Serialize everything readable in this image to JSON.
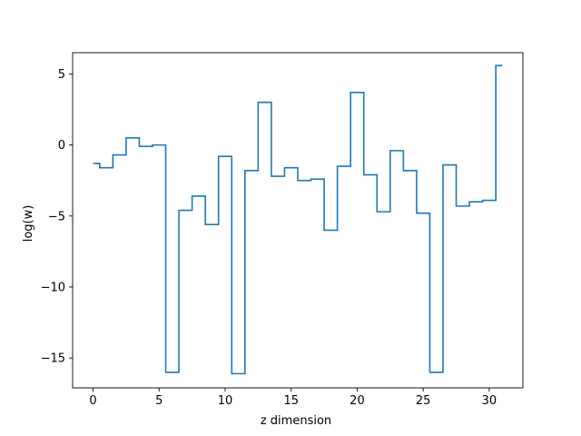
{
  "chart_data": {
    "type": "line",
    "drawstyle": "steps-mid",
    "title": "",
    "xlabel": "z dimension",
    "ylabel": "log(w)",
    "xlim": [
      -1.55,
      32.55
    ],
    "ylim": [
      -17.1,
      6.5
    ],
    "xticks": [
      0,
      5,
      10,
      15,
      20,
      25,
      30
    ],
    "xtick_labels": [
      "0",
      "5",
      "10",
      "15",
      "20",
      "25",
      "30"
    ],
    "yticks": [
      5,
      0,
      -5,
      -10,
      -15
    ],
    "ytick_labels": [
      "5",
      "0",
      "−5",
      "−10",
      "−15"
    ],
    "grid": false,
    "series": [
      {
        "color": "#1f77b4",
        "x": [
          0,
          1,
          2,
          3,
          4,
          5,
          6,
          7,
          8,
          9,
          10,
          11,
          12,
          13,
          14,
          15,
          16,
          17,
          18,
          19,
          20,
          21,
          22,
          23,
          24,
          25,
          26,
          27,
          28,
          29,
          30,
          31
        ],
        "y": [
          -1.3,
          -1.6,
          -0.7,
          0.5,
          -0.1,
          0.0,
          -16.0,
          -4.6,
          -3.6,
          -5.6,
          -0.8,
          -16.1,
          -1.8,
          3.0,
          -2.2,
          -1.6,
          -2.5,
          -2.4,
          -6.0,
          -1.5,
          3.7,
          -2.1,
          -4.7,
          -0.4,
          -1.8,
          -4.8,
          -16.0,
          -1.4,
          -4.3,
          -4.0,
          -3.9,
          5.6
        ]
      }
    ]
  }
}
